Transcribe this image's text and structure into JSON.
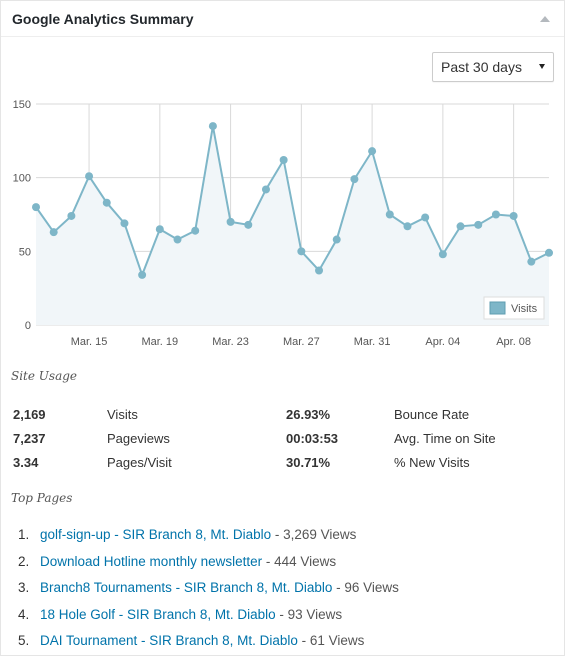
{
  "widget": {
    "title": "Google Analytics Summary"
  },
  "range": {
    "selected": "Past 30 days"
  },
  "colors": {
    "line": "#7eb6c8",
    "fill": "#f1f6f9",
    "grid": "#d9d9d9",
    "link": "#0073aa"
  },
  "chart_data": {
    "type": "area",
    "x_ticks": [
      "Mar. 15",
      "Mar. 19",
      "Mar. 23",
      "Mar. 27",
      "Mar. 31",
      "Apr. 04",
      "Apr. 08"
    ],
    "x_tick_index": [
      3,
      7,
      11,
      15,
      19,
      23,
      27
    ],
    "y_ticks": [
      0,
      50,
      100,
      150
    ],
    "ylim": [
      0,
      150
    ],
    "grid": true,
    "legend_position": "bottom-right",
    "series": [
      {
        "name": "Visits",
        "values": [
          80,
          63,
          74,
          101,
          83,
          69,
          34,
          65,
          58,
          64,
          135,
          70,
          68,
          92,
          112,
          50,
          37,
          58,
          99,
          118,
          75,
          67,
          73,
          48,
          67,
          68,
          75,
          74,
          43,
          49
        ]
      }
    ]
  },
  "usage": {
    "title": "Site Usage",
    "rows": [
      {
        "v1": "2,169",
        "l1": "Visits",
        "v2": "26.93%",
        "l2": "Bounce Rate"
      },
      {
        "v1": "7,237",
        "l1": "Pageviews",
        "v2": "00:03:53",
        "l2": "Avg. Time on Site"
      },
      {
        "v1": "3.34",
        "l1": "Pages/Visit",
        "v2": "30.71%",
        "l2": "% New Visits"
      }
    ]
  },
  "top_pages": {
    "title": "Top Pages",
    "items": [
      {
        "num": "1.",
        "title": "golf-sign-up - SIR Branch 8, Mt. Diablo",
        "views": " - 3,269 Views"
      },
      {
        "num": "2.",
        "title": "Download Hotline monthly newsletter",
        "views": " - 444 Views"
      },
      {
        "num": "3.",
        "title": "Branch8 Tournaments - SIR Branch 8, Mt. Diablo",
        "views": " - 96 Views"
      },
      {
        "num": "4.",
        "title": "18 Hole Golf - SIR Branch 8, Mt. Diablo",
        "views": " - 93 Views"
      },
      {
        "num": "5.",
        "title": "DAI Tournament - SIR Branch 8, Mt. Diablo",
        "views": " - 61 Views"
      }
    ]
  }
}
